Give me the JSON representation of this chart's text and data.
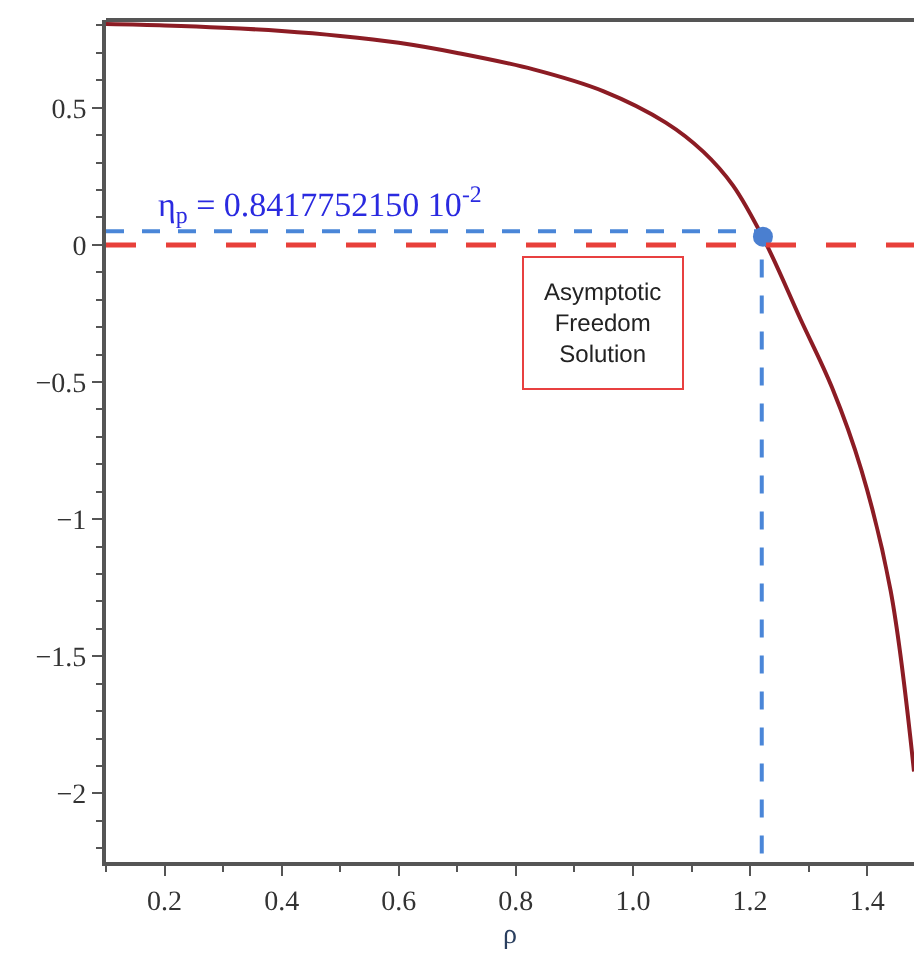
{
  "chart_data": {
    "type": "line",
    "xlabel": "ρ",
    "xlim": [
      0.1,
      1.48
    ],
    "ylim": [
      -2.25,
      0.82
    ],
    "xticks": [
      0.2,
      0.4,
      0.6,
      0.8,
      {
        "value": 1.0,
        "label": "1.0"
      },
      1.2,
      1.4
    ],
    "yticks": [
      {
        "value": -2,
        "label": "−2"
      },
      {
        "value": -1.5,
        "label": "−1.5"
      },
      {
        "value": -1,
        "label": "−1"
      },
      {
        "value": -0.5,
        "label": "−0.5"
      },
      0,
      0.5
    ],
    "legend": false,
    "series": [
      {
        "color": "#8c1c24",
        "line_style": "solid",
        "marker": "none",
        "x": [
          0.1,
          0.2,
          0.3,
          0.4,
          0.5,
          0.6,
          0.7,
          0.83,
          0.95,
          1.056,
          1.12,
          1.171,
          1.226,
          1.286,
          1.34,
          1.39,
          1.44,
          1.48
        ],
        "values": [
          0.805,
          0.8,
          0.792,
          0.78,
          0.762,
          0.737,
          0.7,
          0.64,
          0.56,
          0.446,
          0.34,
          0.216,
          0.01,
          -0.27,
          -0.52,
          -0.82,
          -1.26,
          -1.92
        ]
      },
      {
        "type": "line",
        "color": "#4a86d8",
        "line_style": "dashed",
        "marker": "none",
        "x": [
          0.1,
          1.22,
          1.22
        ],
        "values": [
          0.05,
          0.05,
          -2.25
        ]
      },
      {
        "type": "scatter",
        "color": "#4a7fd0",
        "marker": "circle",
        "x": [
          1.222
        ],
        "values": [
          0.03
        ]
      }
    ],
    "ref_lines": [
      {
        "axis": "y",
        "value": 0,
        "color": "#e8403a",
        "line_style": "dashed"
      }
    ],
    "annotations": [
      "η$_{p}$ = 0.8417752150 10$^{-2}$",
      "Asymptotic\nFreedom\nSolution"
    ]
  }
}
